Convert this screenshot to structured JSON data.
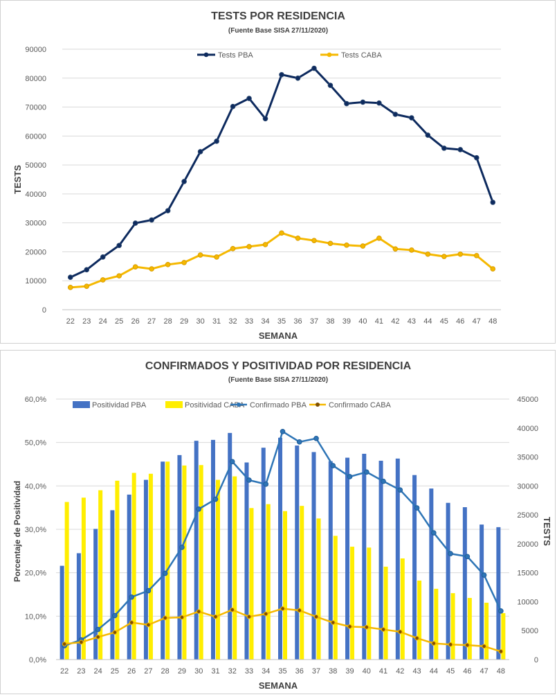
{
  "chart_data": [
    {
      "type": "line",
      "title": "TESTS POR RESIDENCIA",
      "subtitle_prefix": "(Fuente Base SISA",
      "subtitle_date": "27/11/2020)",
      "xlabel": "SEMANA",
      "ylabel": "TESTS",
      "ylim": [
        0,
        90000
      ],
      "y_ticks": [
        "0",
        "10000",
        "20000",
        "30000",
        "40000",
        "50000",
        "60000",
        "70000",
        "80000",
        "90000"
      ],
      "grid": true,
      "legend": "top-center",
      "categories": [
        "22",
        "23",
        "24",
        "25",
        "26",
        "27",
        "28",
        "29",
        "30",
        "31",
        "32",
        "33",
        "34",
        "35",
        "36",
        "37",
        "38",
        "39",
        "40",
        "41",
        "42",
        "43",
        "44",
        "45",
        "46",
        "47",
        "48"
      ],
      "series": [
        {
          "name": "Tests PBA",
          "color": "#0d2a5e",
          "values": [
            11200,
            13800,
            18200,
            22200,
            29900,
            31000,
            34200,
            44300,
            54600,
            58200,
            70200,
            73000,
            66000,
            81200,
            80000,
            83400,
            77500,
            71200,
            71700,
            71400,
            67500,
            66300,
            60300,
            55800,
            55300,
            52500,
            37100
          ]
        },
        {
          "name": "Tests CABA",
          "color": "#f5b800",
          "values": [
            7700,
            8100,
            10300,
            11700,
            14800,
            14100,
            15600,
            16300,
            18900,
            18200,
            21100,
            21800,
            22500,
            26500,
            24700,
            23900,
            22900,
            22300,
            22000,
            24700,
            21000,
            20600,
            19200,
            18400,
            19200,
            18700,
            14100
          ]
        }
      ]
    },
    {
      "type": "bar",
      "title": "CONFIRMADOS Y POSITIVIDAD POR RESIDENCIA",
      "subtitle_prefix": "(Fuente Base SISA",
      "subtitle_date": "27/11/2020)",
      "xlabel": "SEMANA",
      "ylabel": "Porcentaje de Positividad",
      "y2label": "TESTS",
      "ylim": [
        0,
        60
      ],
      "y2lim": [
        0,
        45000
      ],
      "y_ticks": [
        "0,0%",
        "10,0%",
        "20,0%",
        "30,0%",
        "40,0%",
        "50,0%",
        "60,0%"
      ],
      "y2_ticks": [
        "0",
        "5000",
        "10000",
        "15000",
        "20000",
        "25000",
        "30000",
        "35000",
        "40000",
        "45000"
      ],
      "grid": true,
      "legend": "top",
      "categories": [
        "22",
        "23",
        "24",
        "25",
        "26",
        "27",
        "28",
        "29",
        "30",
        "31",
        "32",
        "33",
        "34",
        "35",
        "36",
        "37",
        "38",
        "39",
        "40",
        "41",
        "42",
        "43",
        "44",
        "45",
        "46",
        "47",
        "48"
      ],
      "series": [
        {
          "name": "Positividad PBA",
          "kind": "bar",
          "axis": "left",
          "color": "#4472c4",
          "values": [
            21.6,
            24.5,
            30.1,
            34.4,
            38.0,
            41.4,
            45.6,
            47.1,
            50.4,
            50.6,
            52.2,
            45.4,
            48.8,
            51.1,
            49.3,
            47.8,
            45.7,
            46.5,
            47.4,
            45.8,
            46.3,
            42.5,
            39.4,
            36.1,
            35.1,
            31.1,
            30.5
          ]
        },
        {
          "name": "Positividad CABA",
          "kind": "bar",
          "axis": "left",
          "color": "#ffee00",
          "values": [
            36.3,
            37.3,
            39.0,
            41.2,
            43.0,
            42.8,
            45.6,
            44.7,
            44.8,
            41.4,
            42.2,
            34.9,
            35.8,
            34.2,
            35.4,
            32.5,
            28.5,
            26.0,
            25.8,
            21.4,
            23.3,
            18.2,
            16.3,
            15.3,
            14.2,
            13.1,
            10.7
          ]
        },
        {
          "name": "Confirmado PBA",
          "kind": "line",
          "axis": "right",
          "color": "#2e75b6",
          "values": [
            2400,
            3400,
            5200,
            7600,
            10800,
            11900,
            14900,
            19400,
            26000,
            27700,
            34200,
            31000,
            30300,
            39400,
            37600,
            38200,
            33500,
            31600,
            32400,
            30800,
            29300,
            26200,
            21900,
            18300,
            17800,
            14600,
            8400
          ]
        },
        {
          "name": "Confirmado CABA",
          "kind": "line",
          "axis": "right",
          "color": "#f5b800",
          "values": [
            2700,
            3000,
            3900,
            4700,
            6400,
            6000,
            7200,
            7300,
            8300,
            7400,
            8600,
            7400,
            7900,
            8800,
            8500,
            7400,
            6400,
            5700,
            5600,
            5200,
            4800,
            3700,
            2800,
            2600,
            2500,
            2300,
            1400
          ]
        }
      ]
    }
  ]
}
